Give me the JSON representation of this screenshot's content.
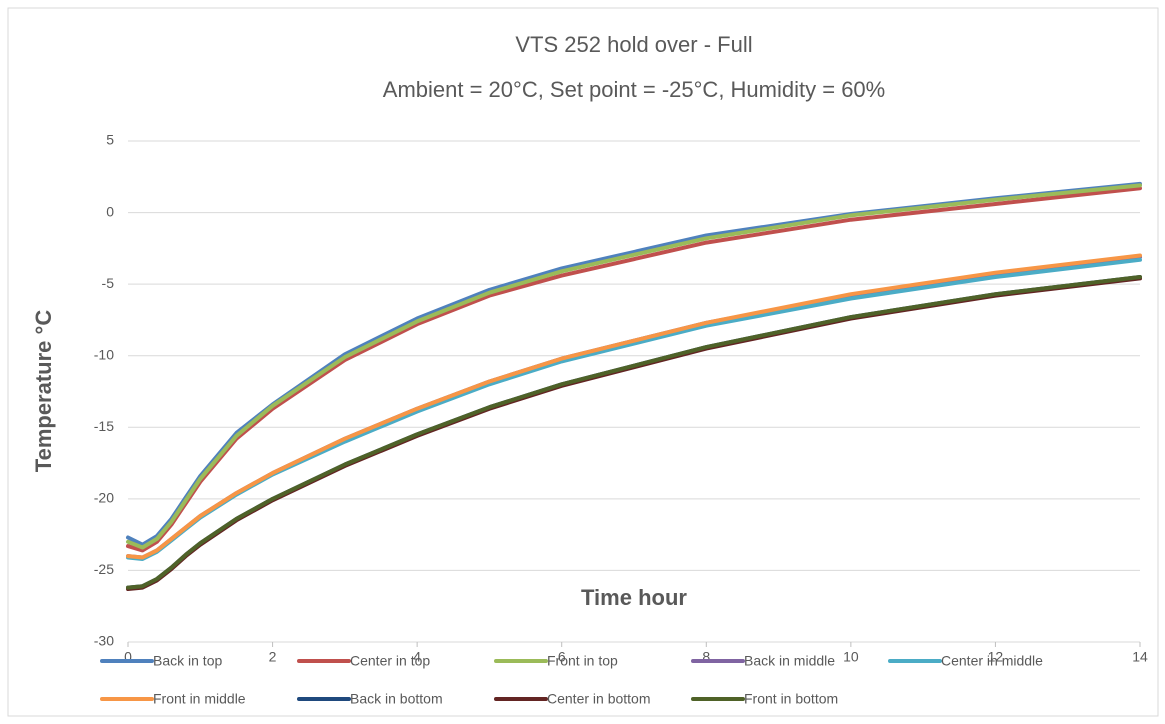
{
  "chart_data": {
    "type": "line",
    "title": "VTS 252 hold over - Full",
    "subtitle": "Ambient = 20°C, Set point = -25°C, Humidity = 60%",
    "x_label": "Time hour",
    "y_label": "Temperature °C",
    "x": [
      0,
      0.2,
      0.4,
      0.6,
      0.8,
      1,
      1.5,
      2,
      3,
      4,
      5,
      6,
      8,
      10,
      12,
      14
    ],
    "series": [
      {
        "name": "Back in top",
        "color": "#4f81bd",
        "values": [
          -22.7,
          -23.2,
          -22.6,
          -21.4,
          -19.9,
          -18.4,
          -15.4,
          -13.4,
          -9.9,
          -7.4,
          -5.4,
          -3.9,
          -1.6,
          -0.1,
          1.0,
          2.0
        ]
      },
      {
        "name": "Center in top",
        "color": "#c0504d",
        "values": [
          -23.3,
          -23.6,
          -23.0,
          -21.8,
          -20.3,
          -18.8,
          -15.8,
          -13.7,
          -10.3,
          -7.8,
          -5.8,
          -4.4,
          -2.1,
          -0.5,
          0.6,
          1.7
        ]
      },
      {
        "name": "Front in top",
        "color": "#9bbb59",
        "values": [
          -23.0,
          -23.4,
          -22.8,
          -21.6,
          -20.1,
          -18.6,
          -15.6,
          -13.5,
          -10.1,
          -7.6,
          -5.6,
          -4.1,
          -1.8,
          -0.2,
          0.9,
          1.9
        ]
      },
      {
        "name": "Back in middle",
        "color": "#8064a2",
        "values": [
          -24.0,
          -24.1,
          -23.6,
          -22.8,
          -22.0,
          -21.2,
          -19.6,
          -18.2,
          -15.8,
          -13.7,
          -11.8,
          -10.2,
          -7.7,
          -5.8,
          -4.3,
          -3.1
        ]
      },
      {
        "name": "Center in middle",
        "color": "#4bacc6",
        "values": [
          -24.1,
          -24.2,
          -23.7,
          -22.9,
          -22.1,
          -21.3,
          -19.7,
          -18.3,
          -16.0,
          -13.9,
          -12.0,
          -10.4,
          -7.9,
          -6.0,
          -4.5,
          -3.3
        ]
      },
      {
        "name": "Front in middle",
        "color": "#f79646",
        "values": [
          -24.0,
          -24.1,
          -23.6,
          -22.8,
          -22.0,
          -21.2,
          -19.6,
          -18.2,
          -15.8,
          -13.7,
          -11.8,
          -10.2,
          -7.7,
          -5.7,
          -4.2,
          -3.0
        ]
      },
      {
        "name": "Back in bottom",
        "color": "#1f497d",
        "values": [
          -26.2,
          -26.1,
          -25.6,
          -24.8,
          -23.9,
          -23.1,
          -21.4,
          -20.0,
          -17.6,
          -15.5,
          -13.6,
          -12.0,
          -9.4,
          -7.3,
          -5.7,
          -4.5
        ]
      },
      {
        "name": "Center in bottom",
        "color": "#632523",
        "values": [
          -26.3,
          -26.2,
          -25.7,
          -24.9,
          -24.0,
          -23.2,
          -21.5,
          -20.1,
          -17.7,
          -15.6,
          -13.7,
          -12.1,
          -9.5,
          -7.4,
          -5.8,
          -4.6
        ]
      },
      {
        "name": "Front in bottom",
        "color": "#4f6228",
        "values": [
          -26.2,
          -26.1,
          -25.6,
          -24.8,
          -23.9,
          -23.1,
          -21.4,
          -20.0,
          -17.6,
          -15.5,
          -13.6,
          -12.0,
          -9.4,
          -7.3,
          -5.7,
          -4.5
        ]
      }
    ],
    "xlim": [
      0,
      14
    ],
    "xticks": [
      0,
      2,
      4,
      6,
      8,
      10,
      12,
      14
    ],
    "ylim": [
      -30,
      5
    ],
    "yticks": [
      -30,
      -25,
      -20,
      -15,
      -10,
      -5,
      0,
      5
    ],
    "grid": true,
    "legend": "bottom"
  }
}
